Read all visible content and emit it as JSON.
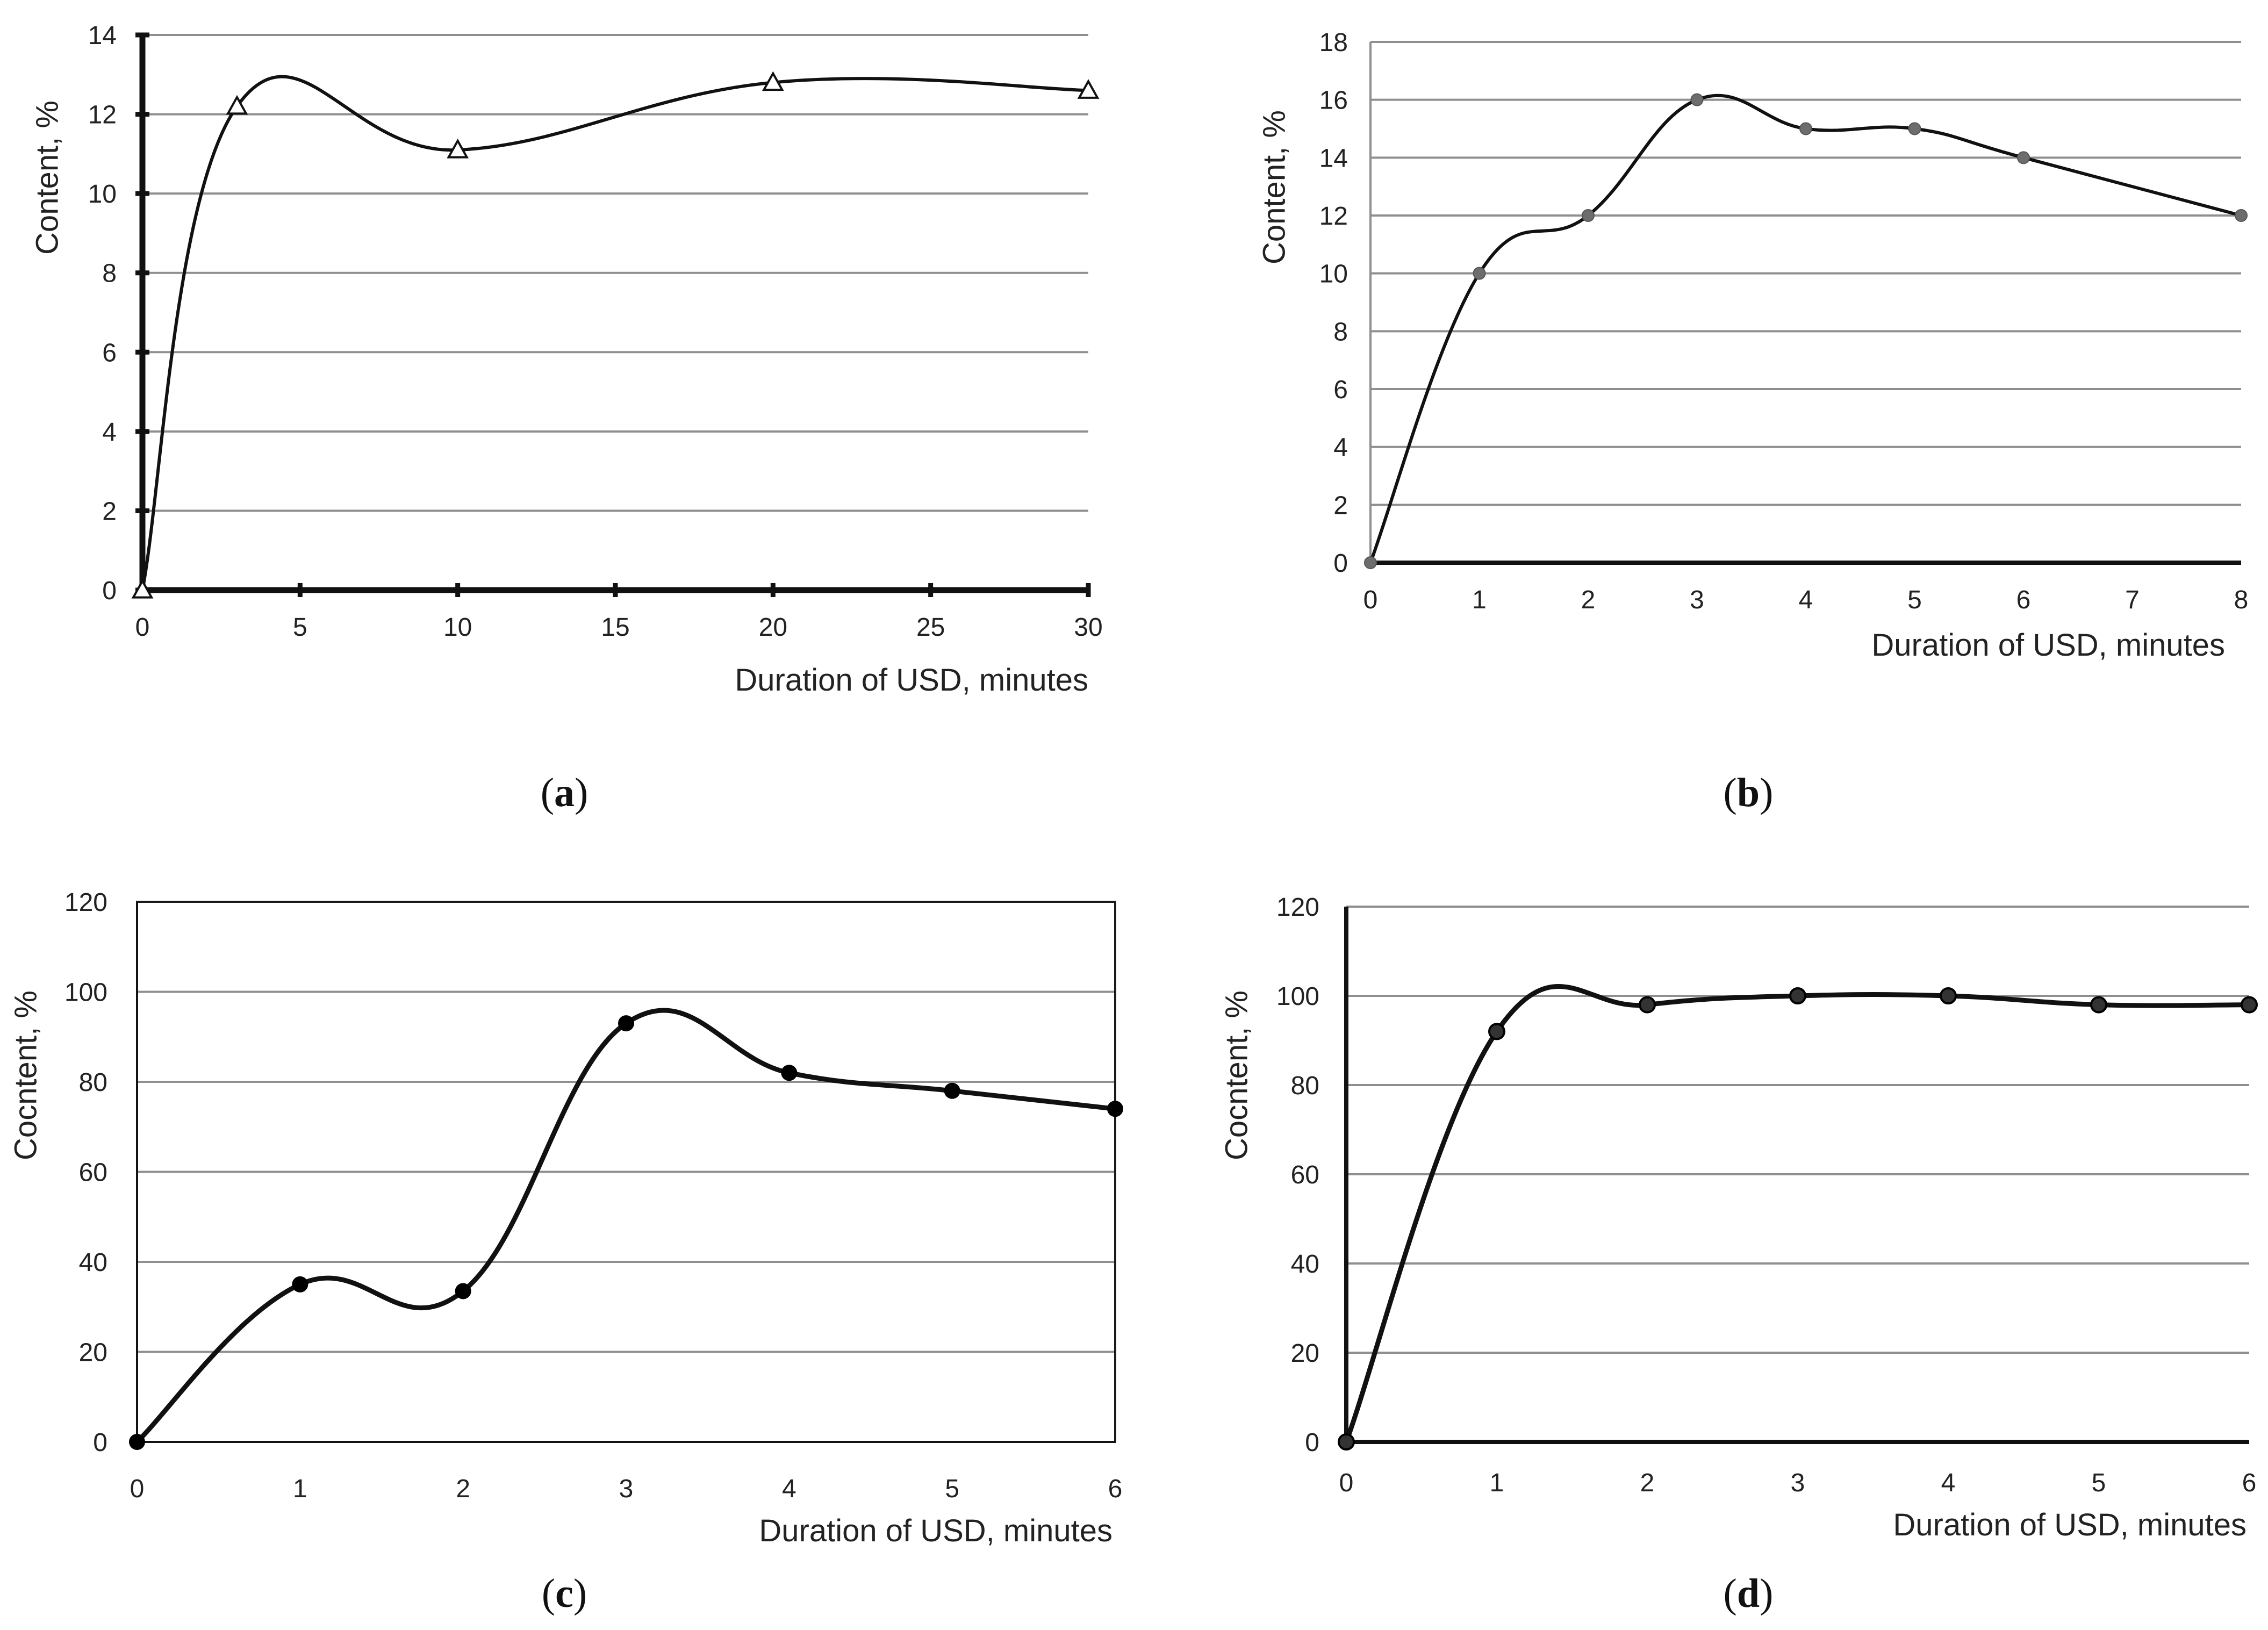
{
  "figure": {
    "panels": [
      "a",
      "b",
      "c",
      "d"
    ]
  },
  "chart_data": [
    {
      "id": "a",
      "type": "line",
      "panel_label": {
        "open": "(",
        "letter": "a",
        "close": ")"
      },
      "title": "",
      "xlabel": "Duration of USD, minutes",
      "ylabel": "Content, %",
      "xlim": [
        0,
        30
      ],
      "ylim": [
        0,
        14
      ],
      "xticks": [
        0,
        5,
        10,
        15,
        20,
        25,
        30
      ],
      "yticks": [
        0,
        2,
        4,
        6,
        8,
        10,
        12,
        14
      ],
      "grid": true,
      "marker": "triangle-open",
      "series": [
        {
          "name": "Content",
          "x": [
            0,
            3,
            10,
            20,
            30
          ],
          "y": [
            0,
            12.2,
            11.1,
            12.8,
            12.6
          ]
        }
      ]
    },
    {
      "id": "b",
      "type": "line",
      "panel_label": {
        "open": "(",
        "letter": "b",
        "close": ")"
      },
      "title": "",
      "xlabel": "Duration of USD, minutes",
      "ylabel": "Content, %",
      "xcategories": [
        "0",
        "1",
        "2",
        "3",
        "4",
        "5",
        "6",
        "7",
        "8"
      ],
      "ylim": [
        0,
        18
      ],
      "yticks": [
        0,
        2,
        4,
        6,
        8,
        10,
        12,
        14,
        16,
        18
      ],
      "grid": true,
      "marker": "circle-gray",
      "series": [
        {
          "name": "Content",
          "x": [
            0,
            1,
            2,
            3,
            4,
            5,
            6,
            8
          ],
          "y": [
            0,
            10,
            12,
            16,
            15,
            15,
            14,
            12
          ]
        }
      ]
    },
    {
      "id": "c",
      "type": "line",
      "panel_label": {
        "open": "(",
        "letter": "c",
        "close": ")"
      },
      "title": "",
      "xlabel": "Duration of USD, minutes",
      "ylabel": "Cocntent, %",
      "xlim": [
        0,
        6
      ],
      "ylim": [
        0,
        120
      ],
      "xticks": [
        0,
        1,
        2,
        3,
        4,
        5,
        6
      ],
      "yticks": [
        0,
        20,
        40,
        60,
        80,
        100,
        120
      ],
      "grid": true,
      "marker": "circle-black",
      "series": [
        {
          "name": "Content",
          "x": [
            0,
            1,
            2,
            3,
            4,
            5,
            6
          ],
          "y": [
            0,
            35,
            33.5,
            93,
            82,
            78,
            74
          ]
        }
      ]
    },
    {
      "id": "d",
      "type": "line",
      "panel_label": {
        "open": "(",
        "letter": "d",
        "close": ")"
      },
      "title": "",
      "xlabel": "Duration of USD, minutes",
      "ylabel": "Cocntent, %",
      "xlim": [
        0,
        6
      ],
      "ylim": [
        0,
        120
      ],
      "xticks": [
        0,
        1,
        2,
        3,
        4,
        5,
        6
      ],
      "yticks": [
        0,
        20,
        40,
        60,
        80,
        100,
        120
      ],
      "grid": true,
      "marker": "circle-dark",
      "series": [
        {
          "name": "Content",
          "x": [
            0,
            1,
            2,
            3,
            4,
            5,
            6
          ],
          "y": [
            0,
            92,
            98,
            100,
            100,
            98,
            98
          ]
        }
      ]
    }
  ]
}
